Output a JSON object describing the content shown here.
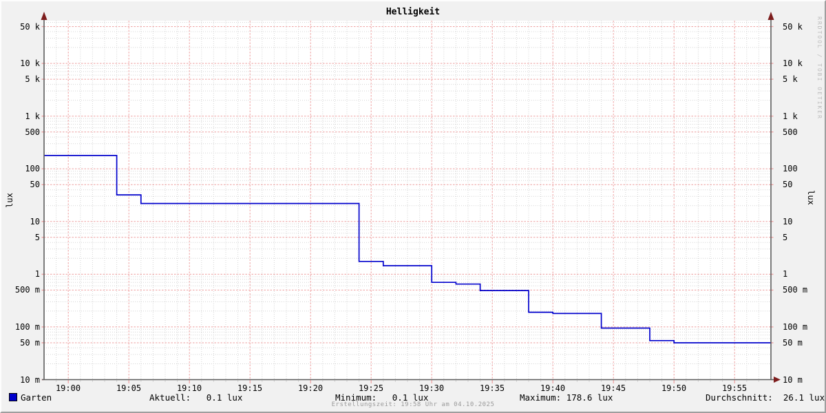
{
  "watermark": "RRDTOOL / TOBI OETIKER",
  "footer": "Erstellungszeit: 19:58 Uhr am 04.10.2025",
  "legend": {
    "series_label": "Garten",
    "swatch_color": "#0000cc",
    "stats": [
      {
        "text": "Aktuell:   0.1 lux"
      },
      {
        "text": "Minimum:   0.1 lux"
      },
      {
        "text": "Maximum: 178.6 lux"
      },
      {
        "text": "Durchschnitt:  26.1 lux"
      }
    ]
  },
  "colors": {
    "line": "#0000cc",
    "grid_major": "#ee9f9f",
    "grid_minor": "#d4d4d4",
    "axis": "#5c5c5c",
    "arrow": "#7d1d1d",
    "canvas": "#ffffff",
    "background": "#f1f1f1"
  },
  "chart_data": {
    "type": "line",
    "title": "Helligkeit",
    "ylabel": "lux",
    "ylabel_right": "lux",
    "y_scale": "log",
    "ylim": [
      0.01,
      50000
    ],
    "x_range": [
      "18:58",
      "19:58"
    ],
    "grid": true,
    "x_ticks": [
      "19:00",
      "19:05",
      "19:10",
      "19:15",
      "19:20",
      "19:25",
      "19:30",
      "19:35",
      "19:40",
      "19:45",
      "19:50",
      "19:55"
    ],
    "y_ticks": [
      {
        "label": "50 k",
        "value": 50000
      },
      {
        "label": "10 k",
        "value": 10000
      },
      {
        "label": "5 k",
        "value": 5000
      },
      {
        "label": "1 k",
        "value": 1000
      },
      {
        "label": "500",
        "value": 500
      },
      {
        "label": "100",
        "value": 100
      },
      {
        "label": "50",
        "value": 50
      },
      {
        "label": "10",
        "value": 10
      },
      {
        "label": "5",
        "value": 5
      },
      {
        "label": "1",
        "value": 1
      },
      {
        "label": "500 m",
        "value": 0.5
      },
      {
        "label": "100 m",
        "value": 0.1
      },
      {
        "label": "50 m",
        "value": 0.05
      },
      {
        "label": "10 m",
        "value": 0.01
      }
    ],
    "series": [
      {
        "name": "Garten",
        "color": "#0000cc",
        "steps": [
          {
            "from": "18:58",
            "value": 178.6
          },
          {
            "from": "19:04",
            "value": 32
          },
          {
            "from": "19:06",
            "value": 22
          },
          {
            "from": "19:24",
            "value": 1.75
          },
          {
            "from": "19:26",
            "value": 1.45
          },
          {
            "from": "19:30",
            "value": 0.7
          },
          {
            "from": "19:32",
            "value": 0.65
          },
          {
            "from": "19:34",
            "value": 0.49
          },
          {
            "from": "19:38",
            "value": 0.19
          },
          {
            "from": "19:40",
            "value": 0.18
          },
          {
            "from": "19:44",
            "value": 0.095
          },
          {
            "from": "19:48",
            "value": 0.055
          },
          {
            "from": "19:50",
            "value": 0.05
          }
        ],
        "end": "19:58"
      }
    ],
    "stats": {
      "aktuell": "0.1 lux",
      "minimum": "0.1 lux",
      "maximum": "178.6 lux",
      "durchschnitt": "26.1 lux"
    }
  }
}
